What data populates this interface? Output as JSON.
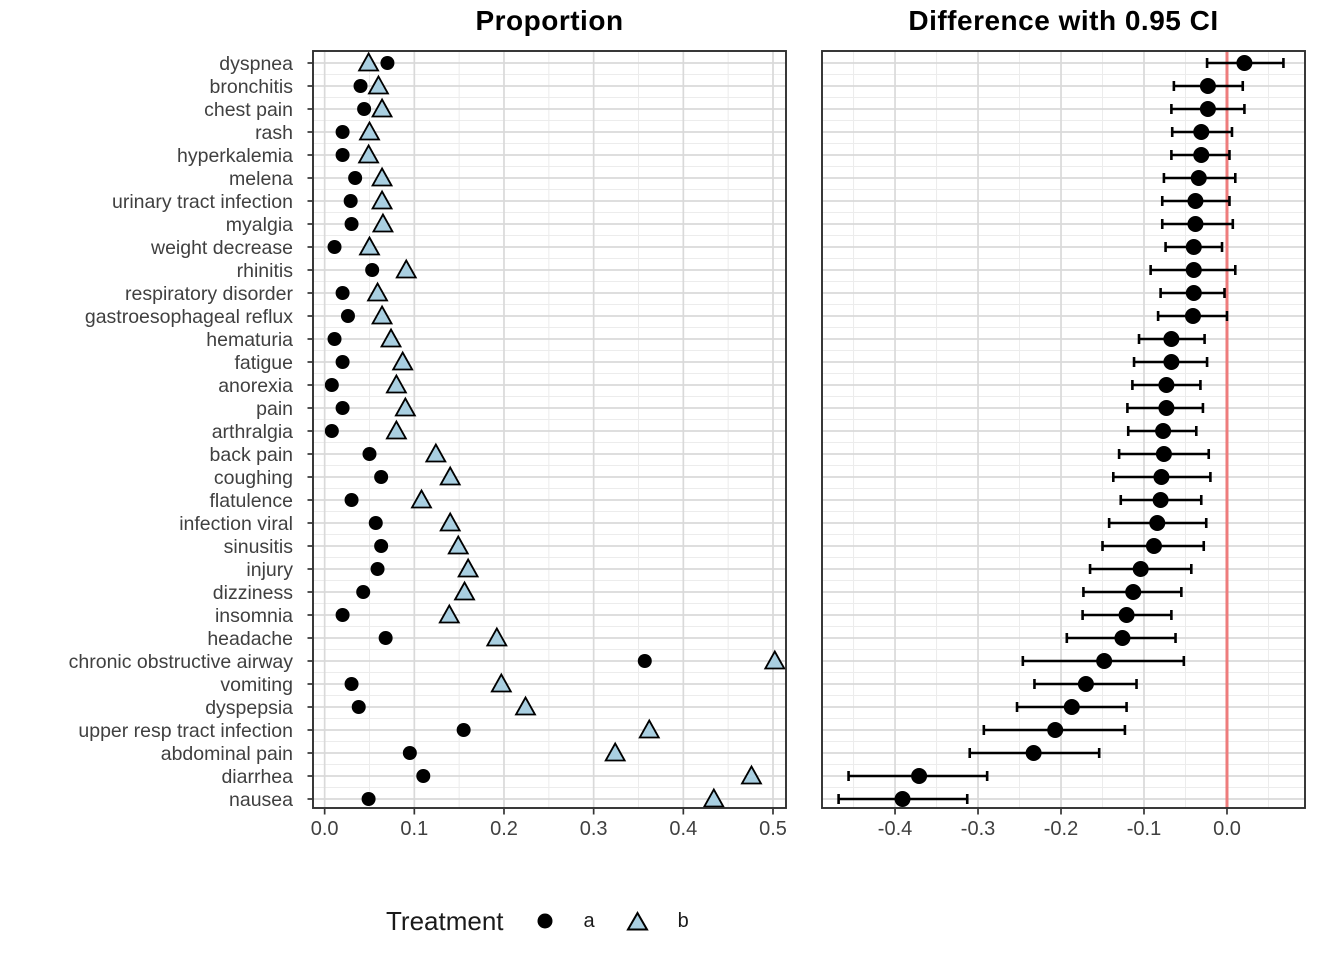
{
  "figure": {
    "titles": {
      "left": "Proportion",
      "right": "Difference with 0.95 CI"
    },
    "legend": {
      "title": "Treatment",
      "items": [
        {
          "label": "a",
          "marker": "circle",
          "color": "#000000"
        },
        {
          "label": "b",
          "marker": "triangle",
          "color": "#A9CFE1"
        }
      ]
    }
  },
  "colors": {
    "treatment_a": "#000000",
    "treatment_b": "#A9CFE1",
    "marker_outline": "#000000",
    "reference_line": "#EE7C7C",
    "grid_major": "#D9D9D9",
    "grid_minor": "#ECECEC",
    "panel_border": "#2F2F2F",
    "axis_text": "#404040",
    "tick_mark": "#333333"
  },
  "chart_data": {
    "type": "scatter",
    "description": "Paired adverse-event dot plot (proportions by treatment) with forest plot of differences and 0.95 confidence intervals; red reference line at 0.",
    "proportion_panel": {
      "title": "Proportion",
      "xlim": [
        -0.013,
        0.5145
      ],
      "ticks": [
        "0.0",
        "0.1",
        "0.2",
        "0.3",
        "0.4",
        "0.5"
      ],
      "grid": true
    },
    "difference_panel": {
      "title": "Difference with 0.95 CI",
      "xlim": [
        -0.488,
        0.094
      ],
      "ticks": [
        "-0.4",
        "-0.3",
        "-0.2",
        "-0.1",
        "0.0"
      ],
      "reference_line_x": 0,
      "grid": true
    },
    "rows": [
      {
        "label": "dyspnea",
        "prop_a": 0.07,
        "prop_b": 0.049,
        "diff": 0.021,
        "ci_low": -0.024,
        "ci_high": 0.068
      },
      {
        "label": "bronchitis",
        "prop_a": 0.04,
        "prop_b": 0.06,
        "diff": -0.023,
        "ci_low": -0.064,
        "ci_high": 0.019
      },
      {
        "label": "chest pain",
        "prop_a": 0.044,
        "prop_b": 0.064,
        "diff": -0.023,
        "ci_low": -0.067,
        "ci_high": 0.021
      },
      {
        "label": "rash",
        "prop_a": 0.02,
        "prop_b": 0.05,
        "diff": -0.031,
        "ci_low": -0.066,
        "ci_high": 0.006
      },
      {
        "label": "hyperkalemia",
        "prop_a": 0.02,
        "prop_b": 0.049,
        "diff": -0.031,
        "ci_low": -0.067,
        "ci_high": 0.003
      },
      {
        "label": "melena",
        "prop_a": 0.034,
        "prop_b": 0.064,
        "diff": -0.034,
        "ci_low": -0.076,
        "ci_high": 0.01
      },
      {
        "label": "urinary tract infection",
        "prop_a": 0.029,
        "prop_b": 0.064,
        "diff": -0.038,
        "ci_low": -0.078,
        "ci_high": 0.003
      },
      {
        "label": "myalgia",
        "prop_a": 0.03,
        "prop_b": 0.065,
        "diff": -0.038,
        "ci_low": -0.078,
        "ci_high": 0.007
      },
      {
        "label": "weight decrease",
        "prop_a": 0.011,
        "prop_b": 0.05,
        "diff": -0.04,
        "ci_low": -0.074,
        "ci_high": -0.006
      },
      {
        "label": "rhinitis",
        "prop_a": 0.053,
        "prop_b": 0.091,
        "diff": -0.04,
        "ci_low": -0.092,
        "ci_high": 0.01
      },
      {
        "label": "respiratory disorder",
        "prop_a": 0.02,
        "prop_b": 0.059,
        "diff": -0.04,
        "ci_low": -0.08,
        "ci_high": -0.003
      },
      {
        "label": "gastroesophageal reflux",
        "prop_a": 0.026,
        "prop_b": 0.064,
        "diff": -0.041,
        "ci_low": -0.083,
        "ci_high": 0.0
      },
      {
        "label": "hematuria",
        "prop_a": 0.011,
        "prop_b": 0.074,
        "diff": -0.067,
        "ci_low": -0.106,
        "ci_high": -0.027
      },
      {
        "label": "fatigue",
        "prop_a": 0.02,
        "prop_b": 0.087,
        "diff": -0.067,
        "ci_low": -0.112,
        "ci_high": -0.024
      },
      {
        "label": "anorexia",
        "prop_a": 0.008,
        "prop_b": 0.08,
        "diff": -0.073,
        "ci_low": -0.114,
        "ci_high": -0.032
      },
      {
        "label": "pain",
        "prop_a": 0.02,
        "prop_b": 0.09,
        "diff": -0.073,
        "ci_low": -0.12,
        "ci_high": -0.029
      },
      {
        "label": "arthralgia",
        "prop_a": 0.008,
        "prop_b": 0.08,
        "diff": -0.077,
        "ci_low": -0.119,
        "ci_high": -0.037
      },
      {
        "label": "back pain",
        "prop_a": 0.05,
        "prop_b": 0.124,
        "diff": -0.076,
        "ci_low": -0.13,
        "ci_high": -0.022
      },
      {
        "label": "coughing",
        "prop_a": 0.063,
        "prop_b": 0.14,
        "diff": -0.079,
        "ci_low": -0.137,
        "ci_high": -0.02
      },
      {
        "label": "flatulence",
        "prop_a": 0.03,
        "prop_b": 0.108,
        "diff": -0.08,
        "ci_low": -0.128,
        "ci_high": -0.031
      },
      {
        "label": "infection viral",
        "prop_a": 0.057,
        "prop_b": 0.14,
        "diff": -0.084,
        "ci_low": -0.142,
        "ci_high": -0.025
      },
      {
        "label": "sinusitis",
        "prop_a": 0.063,
        "prop_b": 0.149,
        "diff": -0.088,
        "ci_low": -0.15,
        "ci_high": -0.028
      },
      {
        "label": "injury",
        "prop_a": 0.059,
        "prop_b": 0.16,
        "diff": -0.104,
        "ci_low": -0.165,
        "ci_high": -0.043
      },
      {
        "label": "dizziness",
        "prop_a": 0.043,
        "prop_b": 0.156,
        "diff": -0.113,
        "ci_low": -0.173,
        "ci_high": -0.055
      },
      {
        "label": "insomnia",
        "prop_a": 0.02,
        "prop_b": 0.139,
        "diff": -0.121,
        "ci_low": -0.174,
        "ci_high": -0.067
      },
      {
        "label": "headache",
        "prop_a": 0.068,
        "prop_b": 0.192,
        "diff": -0.126,
        "ci_low": -0.193,
        "ci_high": -0.062
      },
      {
        "label": "chronic obstructive airway",
        "prop_a": 0.357,
        "prop_b": 0.502,
        "diff": -0.148,
        "ci_low": -0.246,
        "ci_high": -0.052
      },
      {
        "label": "vomiting",
        "prop_a": 0.03,
        "prop_b": 0.197,
        "diff": -0.17,
        "ci_low": -0.232,
        "ci_high": -0.109
      },
      {
        "label": "dyspepsia",
        "prop_a": 0.038,
        "prop_b": 0.224,
        "diff": -0.187,
        "ci_low": -0.253,
        "ci_high": -0.121
      },
      {
        "label": "upper resp tract infection",
        "prop_a": 0.155,
        "prop_b": 0.362,
        "diff": -0.207,
        "ci_low": -0.293,
        "ci_high": -0.123
      },
      {
        "label": "abdominal pain",
        "prop_a": 0.095,
        "prop_b": 0.324,
        "diff": -0.233,
        "ci_low": -0.31,
        "ci_high": -0.154
      },
      {
        "label": "diarrhea",
        "prop_a": 0.11,
        "prop_b": 0.476,
        "diff": -0.371,
        "ci_low": -0.456,
        "ci_high": -0.289
      },
      {
        "label": "nausea",
        "prop_a": 0.049,
        "prop_b": 0.434,
        "diff": -0.391,
        "ci_low": -0.468,
        "ci_high": -0.313
      }
    ]
  }
}
